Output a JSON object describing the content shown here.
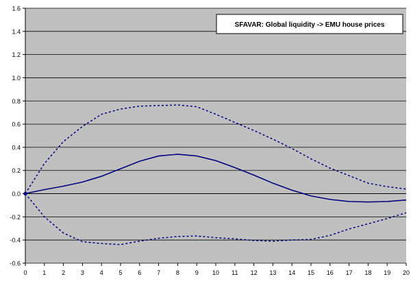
{
  "chart_data": {
    "type": "line",
    "title": "SFAVAR: Global liquidity -> EMU house prices",
    "xlabel": "",
    "ylabel": "",
    "x": [
      0,
      1,
      2,
      3,
      4,
      5,
      6,
      7,
      8,
      9,
      10,
      11,
      12,
      13,
      14,
      15,
      16,
      17,
      18,
      19,
      20
    ],
    "xlim": [
      0,
      20
    ],
    "ylim": [
      -0.6,
      1.6
    ],
    "y_ticks": [
      -0.6,
      -0.4,
      -0.2,
      0.0,
      0.2,
      0.4,
      0.6,
      0.8,
      1.0,
      1.2,
      1.4,
      1.6
    ],
    "y_tick_labels": [
      "-0.6",
      "-0.4",
      "-0.2",
      "0.0",
      "0.2",
      "0.4",
      "0.6",
      "0.8",
      "1.0",
      "1.2",
      "1.4",
      "1.6"
    ],
    "grid": true,
    "legend_position": "top-right",
    "colors": {
      "plot_background": "#c0c0c0",
      "line": "#000080",
      "grid": "#000000"
    },
    "series": [
      {
        "style": "solid",
        "marker": "diamond",
        "values": [
          0.0,
          0.035,
          0.065,
          0.1,
          0.15,
          0.215,
          0.28,
          0.325,
          0.34,
          0.325,
          0.285,
          0.225,
          0.16,
          0.09,
          0.03,
          -0.02,
          -0.05,
          -0.068,
          -0.072,
          -0.068,
          -0.055
        ]
      },
      {
        "style": "dotted",
        "values": [
          0.0,
          0.26,
          0.45,
          0.58,
          0.685,
          0.73,
          0.755,
          0.76,
          0.765,
          0.75,
          0.685,
          0.615,
          0.545,
          0.47,
          0.39,
          0.3,
          0.22,
          0.155,
          0.09,
          0.06,
          0.04
        ]
      },
      {
        "style": "dotted",
        "values": [
          0.0,
          -0.2,
          -0.34,
          -0.415,
          -0.43,
          -0.44,
          -0.41,
          -0.385,
          -0.37,
          -0.365,
          -0.38,
          -0.39,
          -0.405,
          -0.41,
          -0.4,
          -0.395,
          -0.36,
          -0.305,
          -0.26,
          -0.215,
          -0.165
        ]
      }
    ]
  }
}
